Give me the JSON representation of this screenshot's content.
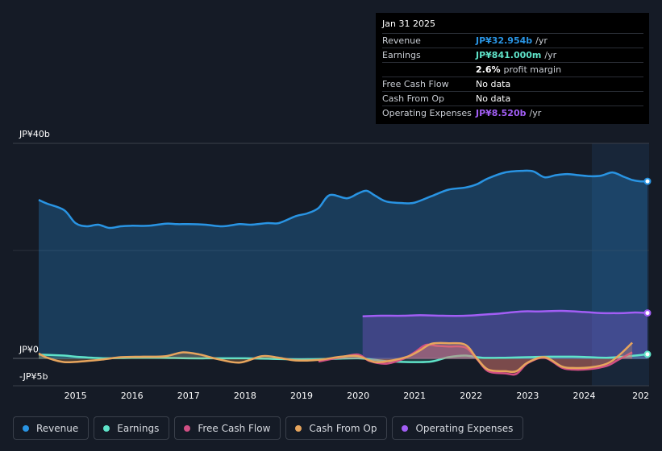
{
  "tooltip": {
    "date": "Jan 31 2025",
    "rows": {
      "revenue": {
        "label": "Revenue",
        "value": "JP¥32.954b",
        "unit": "/yr",
        "color": "#2994e3"
      },
      "earnings": {
        "label": "Earnings",
        "value": "JP¥841.000m",
        "unit": "/yr",
        "color": "#5fe3c9"
      },
      "margin": {
        "value": "2.6%",
        "unit": "profit margin"
      },
      "fcf": {
        "label": "Free Cash Flow",
        "value": "No data"
      },
      "cfo": {
        "label": "Cash From Op",
        "value": "No data"
      },
      "opex": {
        "label": "Operating Expenses",
        "value": "JP¥8.520b",
        "unit": "/yr",
        "color": "#a25ef5"
      }
    }
  },
  "legend": [
    {
      "label": "Revenue",
      "color": "#2994e3"
    },
    {
      "label": "Earnings",
      "color": "#5fe3c9"
    },
    {
      "label": "Free Cash Flow",
      "color": "#d14f84"
    },
    {
      "label": "Cash From Op",
      "color": "#e7a55d"
    },
    {
      "label": "Operating Expenses",
      "color": "#a25ef5"
    }
  ],
  "chart_data": {
    "type": "area",
    "y_unit": "JP¥ billions",
    "ylim": [
      -5,
      40
    ],
    "y_ticks": [
      {
        "value": 40,
        "label": "JP¥40b"
      },
      {
        "value": 0,
        "label": "JP¥0"
      },
      {
        "value": -5,
        "label": "-JP¥5b"
      }
    ],
    "x_ticks": [
      "2015",
      "2016",
      "2017",
      "2018",
      "2019",
      "2020",
      "2021",
      "2022",
      "2023",
      "2024",
      "202"
    ],
    "xlim": [
      2014.35,
      2025.12
    ],
    "series": [
      {
        "name": "Revenue",
        "color": "#2994e3",
        "fill": true,
        "x": [
          2014.35,
          2014.5,
          2014.8,
          2015.0,
          2015.2,
          2015.4,
          2015.6,
          2015.8,
          2016.0,
          2016.3,
          2016.6,
          2016.8,
          2017.0,
          2017.3,
          2017.6,
          2017.9,
          2018.1,
          2018.4,
          2018.6,
          2018.9,
          2019.1,
          2019.3,
          2019.5,
          2019.8,
          2020.0,
          2020.15,
          2020.3,
          2020.5,
          2020.8,
          2021.0,
          2021.3,
          2021.6,
          2021.9,
          2022.1,
          2022.3,
          2022.6,
          2022.9,
          2023.1,
          2023.3,
          2023.5,
          2023.7,
          2023.9,
          2024.1,
          2024.3,
          2024.5,
          2024.7,
          2024.85,
          2025.0,
          2025.12
        ],
        "values": [
          29.5,
          28.8,
          27.6,
          25.2,
          24.6,
          24.9,
          24.3,
          24.6,
          24.7,
          24.7,
          25.1,
          25.0,
          25.0,
          24.9,
          24.6,
          25.0,
          24.9,
          25.2,
          25.2,
          26.5,
          27.0,
          28.0,
          30.4,
          29.8,
          30.7,
          31.2,
          30.3,
          29.2,
          28.9,
          29.0,
          30.2,
          31.4,
          31.8,
          32.4,
          33.5,
          34.6,
          34.9,
          34.8,
          33.7,
          34.1,
          34.3,
          34.1,
          33.9,
          34.0,
          34.6,
          33.8,
          33.2,
          32.95,
          32.954
        ]
      },
      {
        "name": "Earnings",
        "color": "#5fe3c9",
        "fill": true,
        "x": [
          2014.35,
          2014.8,
          2015.0,
          2015.5,
          2016.0,
          2016.5,
          2017.0,
          2017.5,
          2018.0,
          2018.5,
          2019.0,
          2019.5,
          2020.0,
          2020.3,
          2020.6,
          2021.0,
          2021.3,
          2021.6,
          2021.9,
          2022.2,
          2022.6,
          2023.0,
          2023.4,
          2023.8,
          2024.1,
          2024.4,
          2024.7,
          2024.9,
          2025.12
        ],
        "values": [
          0.8,
          0.6,
          0.4,
          0.1,
          0.2,
          0.2,
          0.1,
          0.1,
          0.1,
          0.0,
          -0.1,
          0.0,
          0.1,
          -0.2,
          -0.5,
          -0.6,
          -0.5,
          0.3,
          0.6,
          0.2,
          0.2,
          0.3,
          0.4,
          0.4,
          0.3,
          0.2,
          0.4,
          0.6,
          0.841
        ]
      },
      {
        "name": "Free Cash Flow",
        "color": "#d14f84",
        "fill": true,
        "x": [
          2019.3,
          2019.7,
          2020.0,
          2020.2,
          2020.5,
          2020.8,
          2021.0,
          2021.2,
          2021.4,
          2021.6,
          2021.9,
          2022.1,
          2022.3,
          2022.6,
          2022.8,
          2023.0,
          2023.3,
          2023.6,
          2023.8,
          2024.1,
          2024.4,
          2024.6,
          2024.85
        ],
        "values": [
          -0.5,
          0.3,
          0.8,
          -0.4,
          -0.9,
          0.0,
          1.2,
          2.6,
          2.4,
          2.3,
          2.1,
          0.0,
          -2.3,
          -2.7,
          -2.8,
          -0.8,
          0.2,
          -1.6,
          -2.0,
          -1.9,
          -1.3,
          -0.2,
          1.2
        ]
      },
      {
        "name": "Cash From Op",
        "color": "#e7a55d",
        "fill": true,
        "x": [
          2014.35,
          2014.5,
          2014.8,
          2015.2,
          2015.5,
          2015.8,
          2016.2,
          2016.6,
          2016.9,
          2017.2,
          2017.5,
          2017.9,
          2018.3,
          2018.6,
          2018.9,
          2019.3,
          2019.7,
          2020.0,
          2020.3,
          2020.6,
          2020.9,
          2021.1,
          2021.3,
          2021.6,
          2021.9,
          2022.1,
          2022.3,
          2022.6,
          2022.8,
          2023.0,
          2023.3,
          2023.6,
          2023.8,
          2024.1,
          2024.4,
          2024.6,
          2024.85
        ],
        "values": [
          1.0,
          0.2,
          -0.6,
          -0.4,
          -0.1,
          0.3,
          0.4,
          0.5,
          1.2,
          0.8,
          0.0,
          -0.7,
          0.5,
          0.2,
          -0.3,
          -0.2,
          0.4,
          0.5,
          -0.6,
          -0.3,
          0.5,
          1.6,
          2.8,
          2.9,
          2.6,
          0.1,
          -2.0,
          -2.3,
          -2.3,
          -0.7,
          0.3,
          -1.4,
          -1.7,
          -1.6,
          -0.9,
          0.5,
          3.0
        ]
      },
      {
        "name": "Operating Expenses",
        "color": "#a25ef5",
        "fill": true,
        "x": [
          2020.08,
          2020.4,
          2020.8,
          2021.1,
          2021.5,
          2021.9,
          2022.2,
          2022.5,
          2022.9,
          2023.2,
          2023.6,
          2024.0,
          2024.3,
          2024.7,
          2024.9,
          2025.12
        ],
        "values": [
          7.9,
          8.0,
          8.0,
          8.1,
          8.0,
          8.0,
          8.2,
          8.4,
          8.8,
          8.8,
          8.9,
          8.7,
          8.5,
          8.5,
          8.6,
          8.52
        ]
      }
    ]
  }
}
